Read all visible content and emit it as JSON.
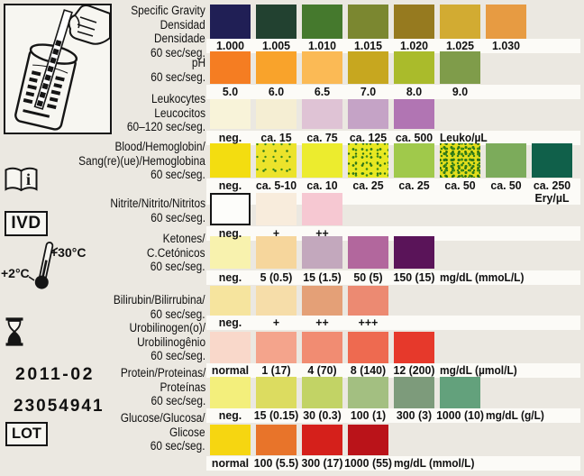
{
  "sidebar": {
    "ivd_label": "IVD",
    "lot_label": "LOT",
    "expiry_date": "2011-02",
    "lot_number": "23054941",
    "temp_high": "+30°C",
    "temp_low": "+2°C"
  },
  "icons": [
    "strip-dipping-illustration",
    "consult-instructions-book-icon",
    "ivd-badge",
    "storage-temperature-thermometer-icon",
    "expiry-hourglass-icon",
    "lot-badge"
  ],
  "colors": {
    "paper": "#ebe8e1",
    "label_band": "#fcfbf7",
    "ink": "#111111"
  },
  "rows": [
    {
      "analyte": [
        "Specific Gravity",
        "Densidad",
        "Densidade",
        "60 sec/seg."
      ],
      "patches": [
        {
          "color": "#201f55",
          "value": "1.000"
        },
        {
          "color": "#224130",
          "value": "1.005"
        },
        {
          "color": "#45792d",
          "value": "1.010"
        },
        {
          "color": "#7b8730",
          "value": "1.015"
        },
        {
          "color": "#967a1f",
          "value": "1.020"
        },
        {
          "color": "#d2ab32",
          "value": "1.025"
        },
        {
          "color": "#e79b42",
          "value": "1.030"
        }
      ]
    },
    {
      "analyte": [
        "pH",
        "60 sec/seg."
      ],
      "patches": [
        {
          "color": "#f57d22",
          "value": "5.0"
        },
        {
          "color": "#f9a32b",
          "value": "6.0"
        },
        {
          "color": "#fbba55",
          "value": "6.5"
        },
        {
          "color": "#c7a71f",
          "value": "7.0"
        },
        {
          "color": "#aabb2b",
          "value": "8.0"
        },
        {
          "color": "#7f9c4a",
          "value": "9.0"
        }
      ]
    },
    {
      "analyte": [
        "Leukocytes",
        "Leucocitos",
        "60–120 sec/seg."
      ],
      "patches": [
        {
          "color": "#f8f3d9",
          "value": "neg."
        },
        {
          "color": "#f5eed3",
          "value": "ca. 15"
        },
        {
          "color": "#dfc3d5",
          "value": "ca. 75"
        },
        {
          "color": "#c5a3c6",
          "value": "ca. 125"
        },
        {
          "color": "#b175b3",
          "value": "ca. 500"
        }
      ],
      "unit": {
        "text": "Leuko/µL",
        "col": 5
      }
    },
    {
      "analyte": [
        "Blood/Hemoglobin/",
        "Sang(re)(ue)/Hemoglobina",
        "60 sec/seg."
      ],
      "patches": [
        {
          "color": "#f3dd10",
          "value": "neg."
        },
        {
          "color": "#ece32b",
          "value": "ca. 5-10",
          "speckle": "light"
        },
        {
          "color": "#ecec2e",
          "value": "ca. 10"
        },
        {
          "color": "#e8e822",
          "value": "ca. 25",
          "speckle": "medium"
        },
        {
          "color": "#a0c94b",
          "value": "ca. 25"
        },
        {
          "color": "#e3de1c",
          "value": "ca. 50",
          "speckle": "dense"
        },
        {
          "color": "#7cab5b",
          "value": "ca. 50"
        },
        {
          "color": "#10604a",
          "value": "ca. 250",
          "subvalue": "Ery/µL"
        }
      ]
    },
    {
      "analyte": [
        "Nitrite/Nitrito/Nitritos",
        "60 sec/seg."
      ],
      "patches": [
        {
          "color": "#fdfdfa",
          "value": "neg.",
          "border": true
        },
        {
          "color": "#f8ecdc",
          "value": "+"
        },
        {
          "color": "#f6c8d2",
          "value": "++"
        }
      ]
    },
    {
      "analyte": [
        "Ketones/",
        "C.Cetónicos",
        "60 sec/seg."
      ],
      "patches": [
        {
          "color": "#f8f2ae",
          "value": "neg."
        },
        {
          "color": "#f6d69c",
          "value": "5 (0.5)"
        },
        {
          "color": "#c3a8bd",
          "value": "15 (1.5)"
        },
        {
          "color": "#b2679d",
          "value": "50 (5)"
        },
        {
          "color": "#5a1459",
          "value": "150 (15)"
        }
      ],
      "unit": {
        "text": "mg/dL (mmoL/L)",
        "col": 5
      }
    },
    {
      "analyte": [
        "Bilirubin/Bilirrubina/",
        "60 sec/seg."
      ],
      "patches": [
        {
          "color": "#f6e49e",
          "value": "neg."
        },
        {
          "color": "#f6dda9",
          "value": "+"
        },
        {
          "color": "#e4a077",
          "value": "++"
        },
        {
          "color": "#ec8a72",
          "value": "+++"
        }
      ]
    },
    {
      "analyte": [
        "Urobilinogen(o)/",
        "Urobilinogênio",
        "60 sec/seg."
      ],
      "patches": [
        {
          "color": "#f9d8ca",
          "value": "normal"
        },
        {
          "color": "#f4a48c",
          "value": "1 (17)"
        },
        {
          "color": "#f18c72",
          "value": "4 (70)"
        },
        {
          "color": "#ee6a50",
          "value": "8 (140)"
        },
        {
          "color": "#e6392b",
          "value": "12 (200)"
        }
      ],
      "unit": {
        "text": "mg/dL (µmol/L)",
        "col": 5
      }
    },
    {
      "analyte": [
        "Protein/Proteinas/",
        "Proteínas",
        "60 sec/seg."
      ],
      "patches": [
        {
          "color": "#f3ef7c",
          "value": "neg."
        },
        {
          "color": "#dcdc60",
          "value": "15 (0.15)"
        },
        {
          "color": "#c2d365",
          "value": "30 (0.3)"
        },
        {
          "color": "#a3bf81",
          "value": "100 (1)"
        },
        {
          "color": "#7d9b7b",
          "value": "300 (3)"
        },
        {
          "color": "#63a17c",
          "value": "1000 (10)"
        }
      ],
      "unit": {
        "text": "mg/dL (g/L)",
        "col": 6
      }
    },
    {
      "analyte": [
        "Glucose/Glucosa/",
        "Glicose",
        "60 sec/seg."
      ],
      "patches": [
        {
          "color": "#f6d611",
          "value": "normal"
        },
        {
          "color": "#e8742a",
          "value": "100 (5.5)"
        },
        {
          "color": "#d5201b",
          "value": "300 (17)"
        },
        {
          "color": "#ba1319",
          "value": "1000 (55)"
        }
      ],
      "unit": {
        "text": "mg/dL (mmol/L)",
        "col": 4
      }
    }
  ]
}
